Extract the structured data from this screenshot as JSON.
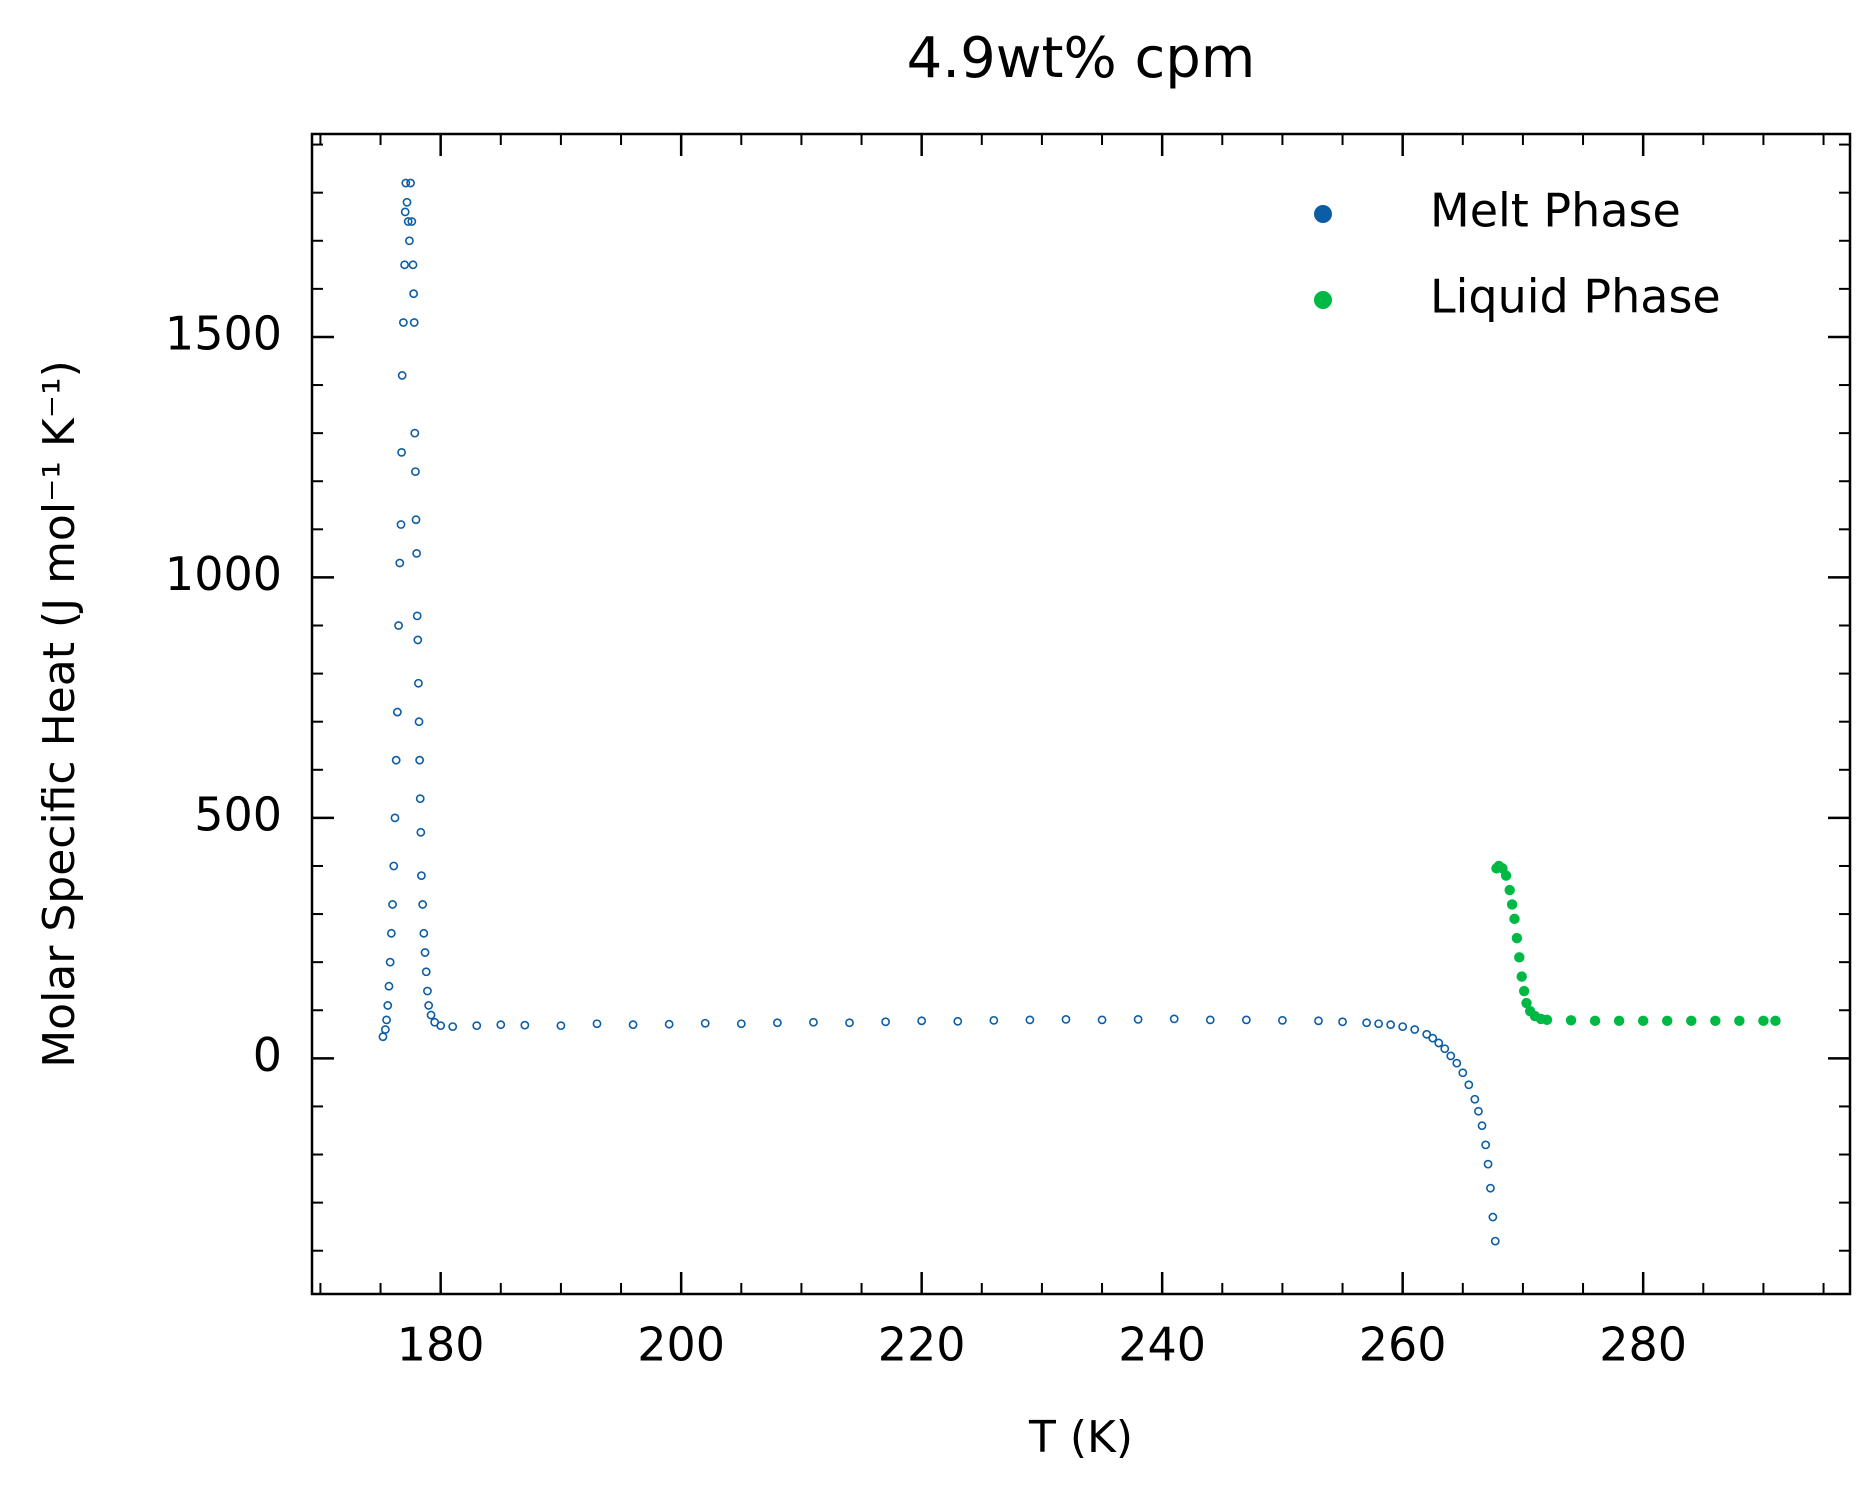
{
  "chart_data": {
    "type": "scatter",
    "title": "4.9wt% cpm",
    "xlabel": "T (K)",
    "ylabel": "Molar Specific Heat (J mol⁻¹ K⁻¹)",
    "xlim": [
      169.3,
      297.2
    ],
    "ylim": [
      -490,
      1922
    ],
    "xticks": [
      180,
      200,
      220,
      240,
      260,
      280
    ],
    "yticks": [
      0,
      500,
      1000,
      1500
    ],
    "xminorticks": [
      170,
      175,
      185,
      190,
      195,
      205,
      210,
      215,
      225,
      230,
      235,
      245,
      250,
      255,
      265,
      270,
      275,
      285,
      290,
      295
    ],
    "yminorticks": [
      -400,
      -300,
      -200,
      -100,
      100,
      200,
      300,
      400,
      600,
      700,
      800,
      900,
      1100,
      1200,
      1300,
      1400,
      1600,
      1700,
      1800,
      1900
    ],
    "legend": "upper right",
    "series": [
      {
        "name": "Melt Phase",
        "color": "#0C5DA5",
        "marker": "hollow",
        "x": [
          175.2,
          175.4,
          175.5,
          175.6,
          175.7,
          175.8,
          175.9,
          176.0,
          176.1,
          176.2,
          176.3,
          176.4,
          176.5,
          176.6,
          176.7,
          176.75,
          176.8,
          176.9,
          177.0,
          177.05,
          177.1,
          177.2,
          177.3,
          177.4,
          177.5,
          177.6,
          177.7,
          177.75,
          177.8,
          177.85,
          177.9,
          177.95,
          178.0,
          178.05,
          178.1,
          178.15,
          178.2,
          178.25,
          178.3,
          178.35,
          178.4,
          178.5,
          178.6,
          178.7,
          178.8,
          178.9,
          179.0,
          179.2,
          179.5,
          180,
          181,
          183,
          185,
          187,
          190,
          193,
          196,
          199,
          202,
          205,
          208,
          211,
          214,
          217,
          220,
          223,
          226,
          229,
          232,
          235,
          238,
          241,
          244,
          247,
          250,
          253,
          255,
          257,
          258,
          259,
          260,
          261,
          262,
          262.5,
          263,
          263.5,
          264,
          264.5,
          265,
          265.5,
          266,
          266.3,
          266.6,
          266.9,
          267.1,
          267.3,
          267.5,
          267.7
        ],
        "y": [
          45,
          60,
          80,
          110,
          150,
          200,
          260,
          320,
          400,
          500,
          620,
          720,
          900,
          1030,
          1110,
          1260,
          1420,
          1530,
          1650,
          1760,
          1820,
          1780,
          1740,
          1700,
          1820,
          1740,
          1650,
          1590,
          1530,
          1300,
          1220,
          1120,
          1050,
          920,
          870,
          780,
          700,
          620,
          540,
          470,
          380,
          320,
          260,
          220,
          180,
          140,
          110,
          90,
          75,
          68,
          66,
          68,
          70,
          69,
          68,
          72,
          70,
          71,
          73,
          72,
          74,
          75,
          74,
          76,
          78,
          77,
          79,
          80,
          81,
          80,
          81,
          82,
          80,
          80,
          79,
          78,
          76,
          74,
          72,
          70,
          66,
          60,
          50,
          42,
          32,
          20,
          5,
          -10,
          -30,
          -55,
          -85,
          -110,
          -140,
          -180,
          -220,
          -270,
          -330,
          -380
        ]
      },
      {
        "name": "Liquid Phase",
        "color": "#00B945",
        "marker": "filled",
        "x": [
          267.8,
          268.0,
          268.3,
          268.6,
          268.9,
          269.1,
          269.3,
          269.5,
          269.7,
          269.9,
          270.1,
          270.3,
          270.6,
          271,
          271.5,
          272,
          274,
          276,
          278,
          280,
          282,
          284,
          286,
          288,
          290,
          291
        ],
        "y": [
          395,
          400,
          395,
          380,
          350,
          320,
          290,
          250,
          210,
          170,
          140,
          115,
          98,
          88,
          82,
          80,
          79,
          78,
          78,
          78,
          78,
          78,
          78,
          78,
          78,
          78
        ]
      }
    ]
  }
}
